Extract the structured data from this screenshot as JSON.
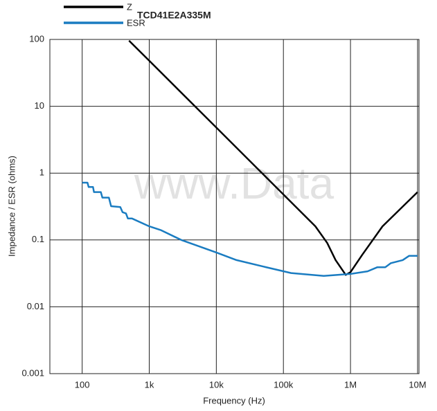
{
  "chart_data": {
    "type": "line",
    "title": "TCD41E2A335M",
    "x_label": "Frequency (Hz)",
    "y_label": "Impedance / ESR (ohms)",
    "annotation": "www.Data",
    "log_x": true,
    "log_y": true,
    "grid": true,
    "xlim": [
      33,
      10500000
    ],
    "ylim": [
      0.001,
      100
    ],
    "xticks": [
      100,
      {
        "value": 1000,
        "label": "1k"
      },
      {
        "value": 10000,
        "label": "10k"
      },
      {
        "value": 100000,
        "label": "100k"
      },
      {
        "value": 1000000,
        "label": "1M"
      },
      {
        "value": 10000000,
        "label": "10M"
      }
    ],
    "yticks": [
      0.001,
      0.01,
      0.1,
      1,
      10,
      100
    ],
    "series": [
      {
        "name": "Z",
        "color": "#000000",
        "x": [
          500,
          1000,
          10000,
          100000,
          300000,
          450000,
          600000,
          850000,
          1000000,
          1500000,
          3000000,
          10000000
        ],
        "values": [
          96,
          48,
          4.8,
          0.48,
          0.16,
          0.09,
          0.05,
          0.03,
          0.033,
          0.06,
          0.16,
          0.52
        ]
      },
      {
        "name": "ESR",
        "color": "#1a7cc1",
        "x": [
          100,
          120,
          125,
          145,
          150,
          190,
          200,
          250,
          270,
          370,
          400,
          450,
          480,
          550,
          1000,
          1500,
          3000,
          10000,
          20000,
          50000,
          130000,
          400000,
          1000000,
          1800000,
          2500000,
          3300000,
          4000000,
          6000000,
          7500000,
          10000000
        ],
        "values": [
          0.72,
          0.72,
          0.62,
          0.62,
          0.52,
          0.52,
          0.43,
          0.43,
          0.32,
          0.31,
          0.26,
          0.25,
          0.21,
          0.21,
          0.16,
          0.14,
          0.1,
          0.065,
          0.05,
          0.04,
          0.032,
          0.029,
          0.031,
          0.034,
          0.039,
          0.039,
          0.045,
          0.05,
          0.058,
          0.058
        ]
      }
    ]
  }
}
